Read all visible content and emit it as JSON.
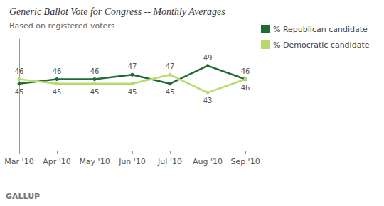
{
  "chart_data": {
    "type": "line",
    "title": "Generic Ballot Vote for Congress -- Monthly Averages",
    "subtitle": "Based on registered voters",
    "annotations": [
      "GALLUP"
    ],
    "categories": [
      "Mar '10",
      "Apr '10",
      "May '10",
      "Jun '10",
      "Jul '10",
      "Aug '10",
      "Sep '10"
    ],
    "series": [
      {
        "name": "% Republican candidate",
        "color": "#1e6b33",
        "values": [
          45,
          46,
          46,
          47,
          45,
          49,
          46
        ]
      },
      {
        "name": "% Democratic candidate",
        "color": "#b8d96e",
        "values": [
          46,
          45,
          45,
          45,
          47,
          43,
          46
        ]
      }
    ],
    "ylim": [
      30,
      55
    ],
    "tick_labels": "x",
    "grid": false,
    "legend": "top-right",
    "data_labels": true,
    "marker": "circle"
  }
}
